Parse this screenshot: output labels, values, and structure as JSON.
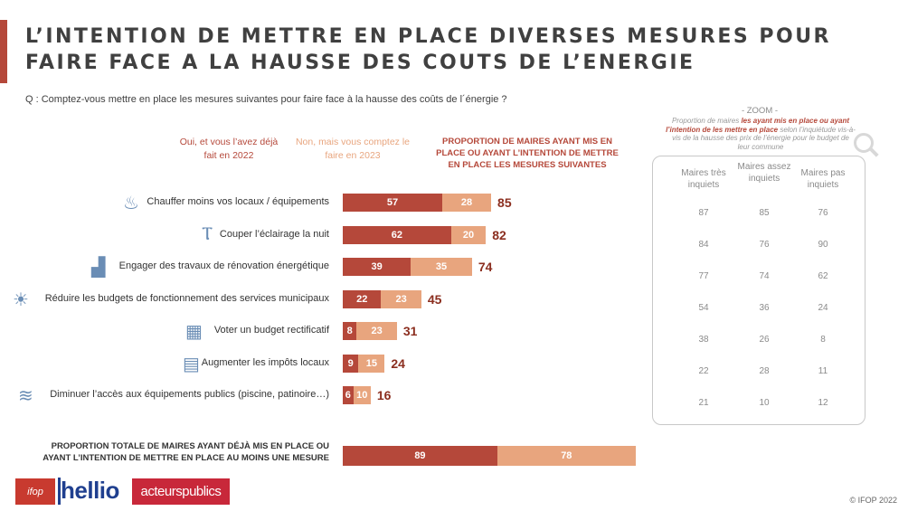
{
  "title_line1": "L’INTENTION DE METTRE EN PLACE DIVERSES MESURES POUR",
  "title_line2": "FAIRE FACE A LA HAUSSE DES COUTS DE L’ENERGIE",
  "question": "Q : Comptez-vous mettre en place les mesures suivantes pour faire face à la hausse des coûts de l´énergie ?",
  "colors": {
    "accent": "#b5483a",
    "yes": "#b5483a",
    "no": "#e8a57e",
    "total": "#8b2e1f"
  },
  "chart_data": {
    "type": "bar",
    "stacked": true,
    "orientation": "horizontal",
    "series": [
      {
        "name": "Oui, et vous l’avez déjà fait en 2022",
        "values": [
          57,
          62,
          39,
          22,
          8,
          9,
          6
        ]
      },
      {
        "name": "Non, mais vous comptez le faire en 2023",
        "values": [
          28,
          20,
          35,
          23,
          23,
          15,
          10
        ]
      }
    ],
    "totals_header": "PROPORTION DE MAIRES AYANT MIS EN PLACE OU AYANT L’INTENTION DE METTRE EN PLACE LES MESURES SUIVANTES",
    "categories": [
      "Chauffer moins vos locaux / équipements",
      "Couper l’éclairage la nuit",
      "Engager des travaux de rénovation énergétique",
      "Réduire les budgets de fonctionnement des services municipaux",
      "Voter un budget rectificatif",
      "Augmenter les impôts locaux",
      "Diminuer l’accès aux équipements publics (piscine, patinoire…)"
    ],
    "totals": [
      85,
      82,
      74,
      45,
      31,
      24,
      16
    ],
    "icons": [
      "radiator-icon",
      "street-lamp-icon",
      "building-icon",
      "lightbulb-down-icon",
      "calculator-icon",
      "tax-icon",
      "pool-icon"
    ],
    "overall": {
      "label_line1": "PROPORTION TOTALE DE MAIRES AYANT DÉJÀ MIS EN PLACE OU",
      "label_line2": "AYANT L’INTENTION DE METTRE EN PLACE AU MOINS UNE MESURE",
      "yes": 89,
      "no": 78
    },
    "zoom": {
      "title": "- ZOOM -",
      "subtitle_pre": "Proportion de maires ",
      "subtitle_hl": "les ayant mis en place ou ayant l’intention de les mettre en place",
      "subtitle_post": " selon l’inquiétude vis-à-vis de la hausse des prix de l’énergie pour le budget de leur commune",
      "columns": [
        "Maires très inquiets",
        "Maires assez inquiets",
        "Maires pas inquiets"
      ],
      "rows": [
        [
          87,
          85,
          76
        ],
        [
          84,
          76,
          90
        ],
        [
          77,
          74,
          62
        ],
        [
          54,
          36,
          24
        ],
        [
          38,
          26,
          8
        ],
        [
          22,
          28,
          11
        ],
        [
          21,
          10,
          12
        ]
      ]
    }
  },
  "logos": {
    "ifop": "ifop",
    "hellio": "hellio",
    "acteurs": "acteurspublics"
  },
  "copyright": "© IFOP 2022"
}
